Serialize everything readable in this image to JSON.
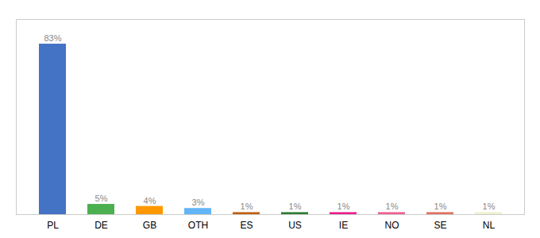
{
  "chart_data": {
    "type": "bar",
    "categories": [
      "PL",
      "DE",
      "GB",
      "OTH",
      "ES",
      "US",
      "IE",
      "NO",
      "SE",
      "NL"
    ],
    "values": [
      83,
      5,
      4,
      3,
      1,
      1,
      1,
      1,
      1,
      1
    ],
    "value_labels": [
      "83%",
      "5%",
      "4%",
      "3%",
      "1%",
      "1%",
      "1%",
      "1%",
      "1%",
      "1%"
    ],
    "colors": [
      "#4472c4",
      "#4caf50",
      "#ff9800",
      "#64b5f6",
      "#bf6010",
      "#2e7d32",
      "#e91e8c",
      "#f06090",
      "#e07060",
      "#f0f0d0"
    ],
    "ylim": [
      0,
      95
    ],
    "data_labels": true,
    "tick_labels": "x"
  }
}
